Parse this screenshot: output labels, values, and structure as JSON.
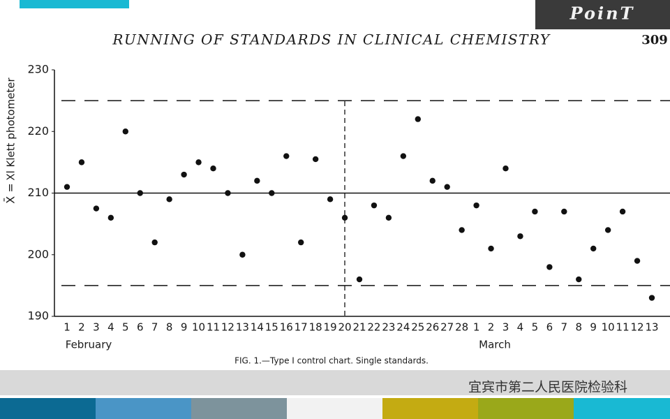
{
  "header": {
    "logo": "PoinT"
  },
  "chart_data": {
    "type": "scatter",
    "title": "RUNNING OF STANDARDS IN CLINICAL CHEMISTRY",
    "page_number": "309",
    "y_label": "Xl Klett photometer",
    "mean_label": "X̄ =",
    "categories": [
      "1",
      "2",
      "3",
      "4",
      "5",
      "6",
      "7",
      "8",
      "9",
      "10",
      "11",
      "12",
      "13",
      "14",
      "15",
      "16",
      "17",
      "18",
      "19",
      "20",
      "21",
      "22",
      "23",
      "24",
      "25",
      "26",
      "27",
      "28",
      "1",
      "2",
      "3",
      "4",
      "5",
      "6",
      "7",
      "8",
      "9",
      "10",
      "11",
      "12",
      "13"
    ],
    "months": [
      "February",
      "March"
    ],
    "values": [
      211,
      215,
      207.5,
      206,
      220,
      210,
      202,
      209,
      213,
      215,
      214,
      210,
      200,
      212,
      210,
      216,
      202,
      215.5,
      209,
      206,
      196,
      208,
      206,
      216,
      222,
      212,
      211,
      204,
      208,
      201,
      214,
      203,
      207,
      198,
      207,
      196,
      201,
      204,
      207,
      199,
      193
    ],
    "color": "#111111",
    "ylim": [
      190,
      230
    ],
    "yticks": [
      190,
      200,
      210,
      220,
      230
    ],
    "mean": 210,
    "upper_limit": 225,
    "lower_limit": 195,
    "caption": "FIG. 1.—Type I control chart.   Single standards."
  },
  "footer": {
    "text": "宜宾市第二人民医院检验科"
  }
}
